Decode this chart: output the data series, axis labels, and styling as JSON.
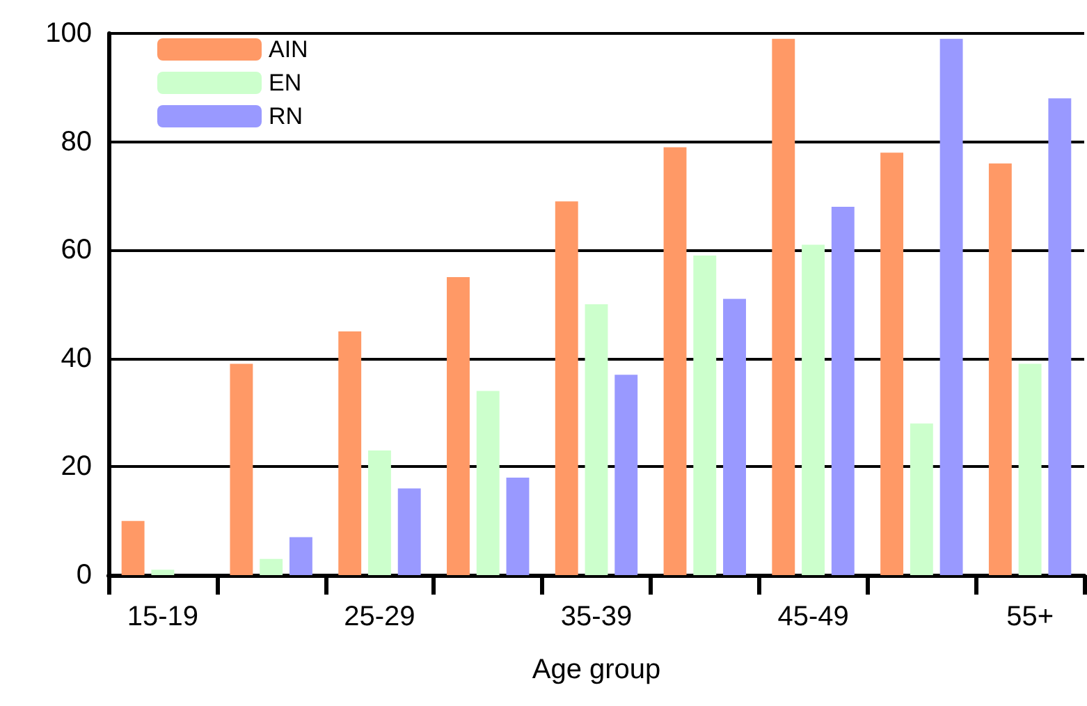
{
  "chart_data": {
    "type": "bar",
    "xlabel": "Age group",
    "categories": [
      "15-19",
      null,
      "25-29",
      null,
      "35-39",
      null,
      "45-49",
      null,
      "55+"
    ],
    "series": [
      {
        "name": "AIN",
        "color": "#ff9966",
        "values": [
          10,
          39,
          45,
          55,
          69,
          79,
          99,
          78,
          76
        ]
      },
      {
        "name": "EN",
        "color": "#ccffcc",
        "values": [
          1,
          3,
          23,
          34,
          50,
          59,
          61,
          28,
          39
        ]
      },
      {
        "name": "RN",
        "color": "#9999ff",
        "values": [
          0,
          7,
          16,
          18,
          37,
          51,
          68,
          99,
          88
        ]
      }
    ],
    "ylim": [
      0,
      100
    ],
    "yticks": [
      0,
      20,
      40,
      60,
      80,
      100
    ],
    "grid": "y",
    "legend": "top left"
  }
}
